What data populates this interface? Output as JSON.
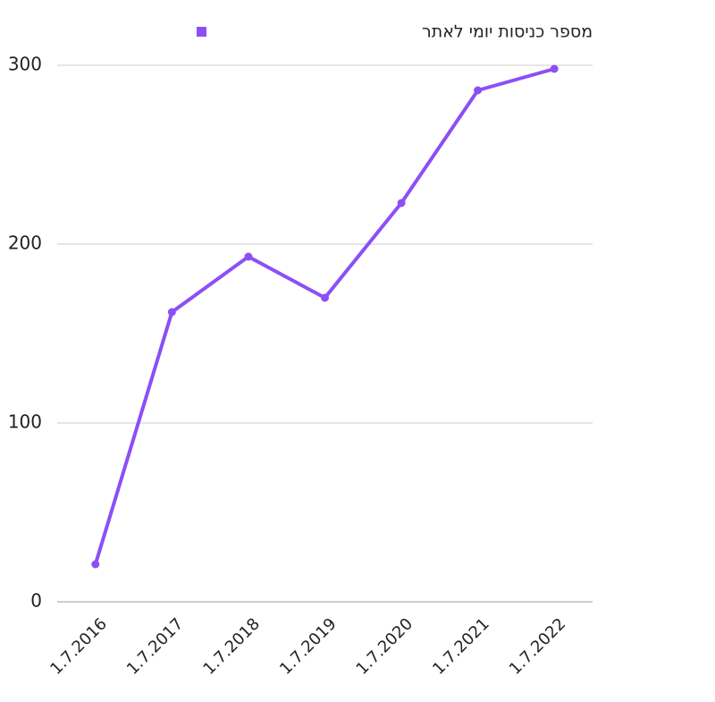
{
  "chart_data": {
    "type": "line",
    "categories": [
      "1.7.2016",
      "1.7.2017",
      "1.7.2018",
      "1.7.2019",
      "1.7.2020",
      "1.7.2021",
      "1.7.2022"
    ],
    "series": [
      {
        "name": "מספר כניסות יומי לאתר",
        "color": "#8c4ff5",
        "values": [
          21,
          162,
          193,
          170,
          223,
          286,
          298
        ]
      }
    ],
    "ylim": [
      0,
      300
    ],
    "yticks": [
      0,
      100,
      200,
      300
    ],
    "grid": true,
    "legend": "top"
  }
}
